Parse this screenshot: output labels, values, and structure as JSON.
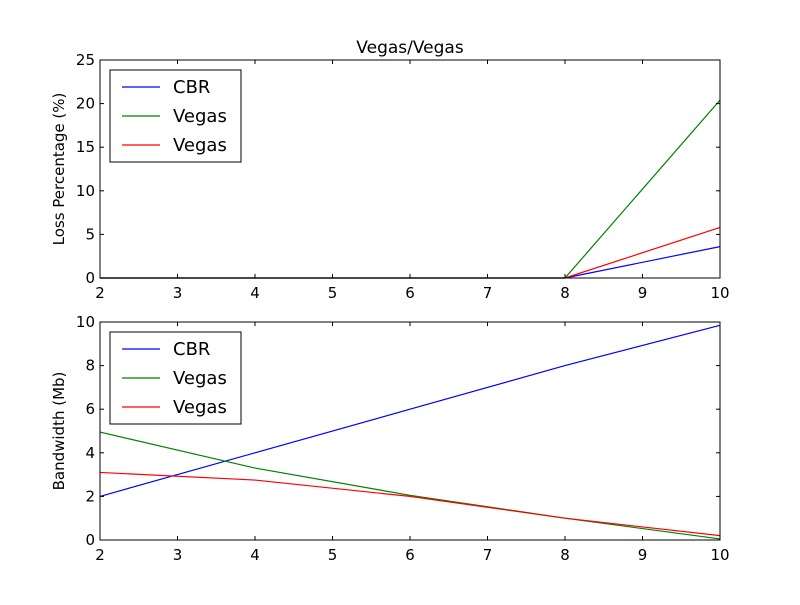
{
  "chart_data": [
    {
      "type": "line",
      "title": "Vegas/Vegas",
      "xlabel": "",
      "ylabel": "Loss Percentage (%)",
      "xlim": [
        2,
        10
      ],
      "ylim": [
        0,
        25
      ],
      "xticks": [
        "2",
        "3",
        "4",
        "5",
        "6",
        "7",
        "8",
        "9",
        "10"
      ],
      "yticks": [
        "0",
        "5",
        "10",
        "15",
        "20",
        "25"
      ],
      "grid": false,
      "legend_position": "top-left",
      "x": [
        2,
        4,
        6,
        8,
        10
      ],
      "series": [
        {
          "name": "CBR",
          "color": "#0000ff",
          "values": [
            0,
            0,
            0,
            0,
            3.6
          ]
        },
        {
          "name": "Vegas",
          "color": "#008000",
          "values": [
            0,
            0,
            0,
            0,
            20.4
          ]
        },
        {
          "name": "Vegas",
          "color": "#ff0000",
          "values": [
            0,
            0,
            0,
            0,
            5.8
          ]
        }
      ]
    },
    {
      "type": "line",
      "title": "",
      "xlabel": "",
      "ylabel": "Bandwidth (Mb)",
      "xlim": [
        2,
        10
      ],
      "ylim": [
        0,
        10
      ],
      "xticks": [
        "2",
        "3",
        "4",
        "5",
        "6",
        "7",
        "8",
        "9",
        "10"
      ],
      "yticks": [
        "0",
        "2",
        "4",
        "6",
        "8",
        "10"
      ],
      "grid": false,
      "legend_position": "top-left",
      "x": [
        2,
        4,
        6,
        8,
        10
      ],
      "series": [
        {
          "name": "CBR",
          "color": "#0000ff",
          "values": [
            2.0,
            4.0,
            6.0,
            8.0,
            9.85
          ]
        },
        {
          "name": "Vegas",
          "color": "#008000",
          "values": [
            4.95,
            3.3,
            2.05,
            1.0,
            0.05
          ]
        },
        {
          "name": "Vegas",
          "color": "#ff0000",
          "values": [
            3.1,
            2.75,
            2.0,
            1.0,
            0.2
          ]
        }
      ]
    }
  ]
}
